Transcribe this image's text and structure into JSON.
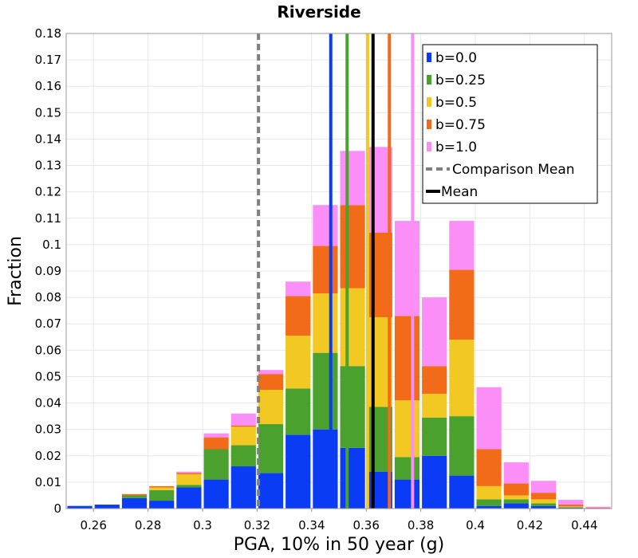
{
  "chart_data": {
    "type": "bar",
    "stacked": true,
    "title": "Riverside",
    "xlabel": "PGA, 10% in 50 year (g)",
    "ylabel": "Fraction",
    "xlim": [
      0.25,
      0.45
    ],
    "ylim": [
      0,
      0.18
    ],
    "bin_width": 0.01,
    "x_ticks": [
      "0.26",
      "0.28",
      "0.3",
      "0.32",
      "0.34",
      "0.36",
      "0.38",
      "0.4",
      "0.42",
      "0.44"
    ],
    "y_ticks": [
      "0",
      "0.01",
      "0.02",
      "0.03",
      "0.04",
      "0.05",
      "0.06",
      "0.07",
      "0.08",
      "0.09",
      "0.1",
      "0.11",
      "0.12",
      "0.13",
      "0.14",
      "0.15",
      "0.16",
      "0.17",
      "0.18"
    ],
    "x": [
      0.255,
      0.265,
      0.275,
      0.285,
      0.295,
      0.305,
      0.315,
      0.325,
      0.335,
      0.345,
      0.355,
      0.365,
      0.375,
      0.385,
      0.395,
      0.405,
      0.415,
      0.425,
      0.435,
      0.445
    ],
    "series": [
      {
        "name": "b=0.0",
        "color": "#0a3cf5",
        "values": [
          0.001,
          0.0015,
          0.004,
          0.003,
          0.008,
          0.011,
          0.016,
          0.0135,
          0.028,
          0.03,
          0.023,
          0.014,
          0.011,
          0.02,
          0.0125,
          0.001,
          0.002,
          0.001,
          0.0003,
          0.0001
        ]
      },
      {
        "name": "b=0.25",
        "color": "#4aa12d",
        "values": [
          0.0,
          0.0,
          0.001,
          0.004,
          0.001,
          0.0115,
          0.008,
          0.0185,
          0.0175,
          0.029,
          0.031,
          0.0245,
          0.0085,
          0.0145,
          0.0225,
          0.0025,
          0.0015,
          0.001,
          0.0002,
          0.0
        ]
      },
      {
        "name": "b=0.5",
        "color": "#f2c823",
        "values": [
          0.0,
          0.0,
          0.0,
          0.001,
          0.004,
          0.0,
          0.007,
          0.013,
          0.02,
          0.0225,
          0.0295,
          0.034,
          0.0215,
          0.009,
          0.029,
          0.005,
          0.0015,
          0.0015,
          0.0003,
          0.0
        ]
      },
      {
        "name": "b=0.75",
        "color": "#f26b18",
        "values": [
          0.0,
          0.0,
          0.0005,
          0.0005,
          0.0005,
          0.0045,
          0.0005,
          0.006,
          0.015,
          0.018,
          0.0315,
          0.032,
          0.032,
          0.0105,
          0.0265,
          0.014,
          0.0045,
          0.0025,
          0.0007,
          0.0002
        ]
      },
      {
        "name": "b=1.0",
        "color": "#fb8ef7",
        "values": [
          0.0,
          0.0,
          0.0,
          0.0,
          0.0005,
          0.0015,
          0.0045,
          0.0015,
          0.0055,
          0.0155,
          0.0205,
          0.0325,
          0.036,
          0.026,
          0.0185,
          0.0235,
          0.008,
          0.0045,
          0.0018,
          0.0004
        ]
      }
    ],
    "vertical_lines": [
      {
        "series": "b=0.0",
        "x": 0.347,
        "color": "#0a3cf5",
        "style": "solid"
      },
      {
        "series": "b=0.25",
        "x": 0.353,
        "color": "#4aa12d",
        "style": "solid"
      },
      {
        "series": "b=0.5",
        "x": 0.3605,
        "color": "#f2c823",
        "style": "solid"
      },
      {
        "series": "b=0.75",
        "x": 0.3685,
        "color": "#f26b18",
        "style": "solid"
      },
      {
        "series": "b=1.0",
        "x": 0.377,
        "color": "#fb8ef7",
        "style": "solid"
      },
      {
        "series": "Comparison Mean",
        "x": 0.3205,
        "color": "#808080",
        "style": "dashed"
      },
      {
        "series": "Mean",
        "x": 0.3625,
        "color": "#000000",
        "style": "solid"
      }
    ],
    "legend": {
      "position": "top-right",
      "entries": [
        {
          "label": "b=0.0",
          "color": "#0a3cf5",
          "kind": "box"
        },
        {
          "label": "b=0.25",
          "color": "#4aa12d",
          "kind": "box"
        },
        {
          "label": "b=0.5",
          "color": "#f2c823",
          "kind": "box"
        },
        {
          "label": "b=0.75",
          "color": "#f26b18",
          "kind": "box"
        },
        {
          "label": "b=1.0",
          "color": "#fb8ef7",
          "kind": "box"
        },
        {
          "label": "Comparison Mean",
          "color": "#808080",
          "kind": "dashed"
        },
        {
          "label": "Mean",
          "color": "#000000",
          "kind": "line"
        }
      ]
    },
    "grid": true
  }
}
